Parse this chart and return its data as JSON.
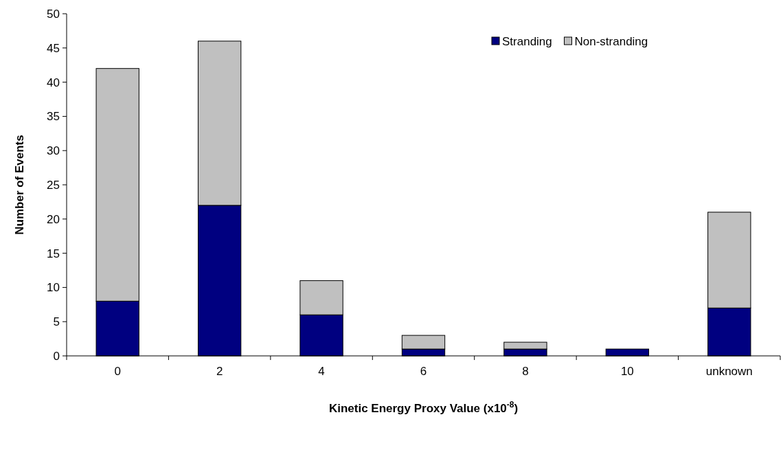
{
  "chart_data": {
    "type": "bar",
    "stacked": true,
    "xlabel": "Kinetic Energy Proxy Value (x10$^{-8}$)",
    "ylabel": "Number of Events",
    "categories": [
      "0",
      "2",
      "4",
      "6",
      "8",
      "10",
      "unknown"
    ],
    "series": [
      {
        "name": "Stranding",
        "color": "#000080",
        "values": [
          8,
          22,
          6,
          1,
          1,
          1,
          7
        ]
      },
      {
        "name": "Non-stranding",
        "color": "#c0c0c0",
        "values": [
          34,
          24,
          5,
          2,
          1,
          0,
          14
        ]
      }
    ],
    "ylim": [
      0,
      50
    ],
    "yticks": [
      0,
      5,
      10,
      15,
      20,
      25,
      30,
      35,
      40,
      45,
      50
    ],
    "grid": false,
    "legend": "top right"
  }
}
